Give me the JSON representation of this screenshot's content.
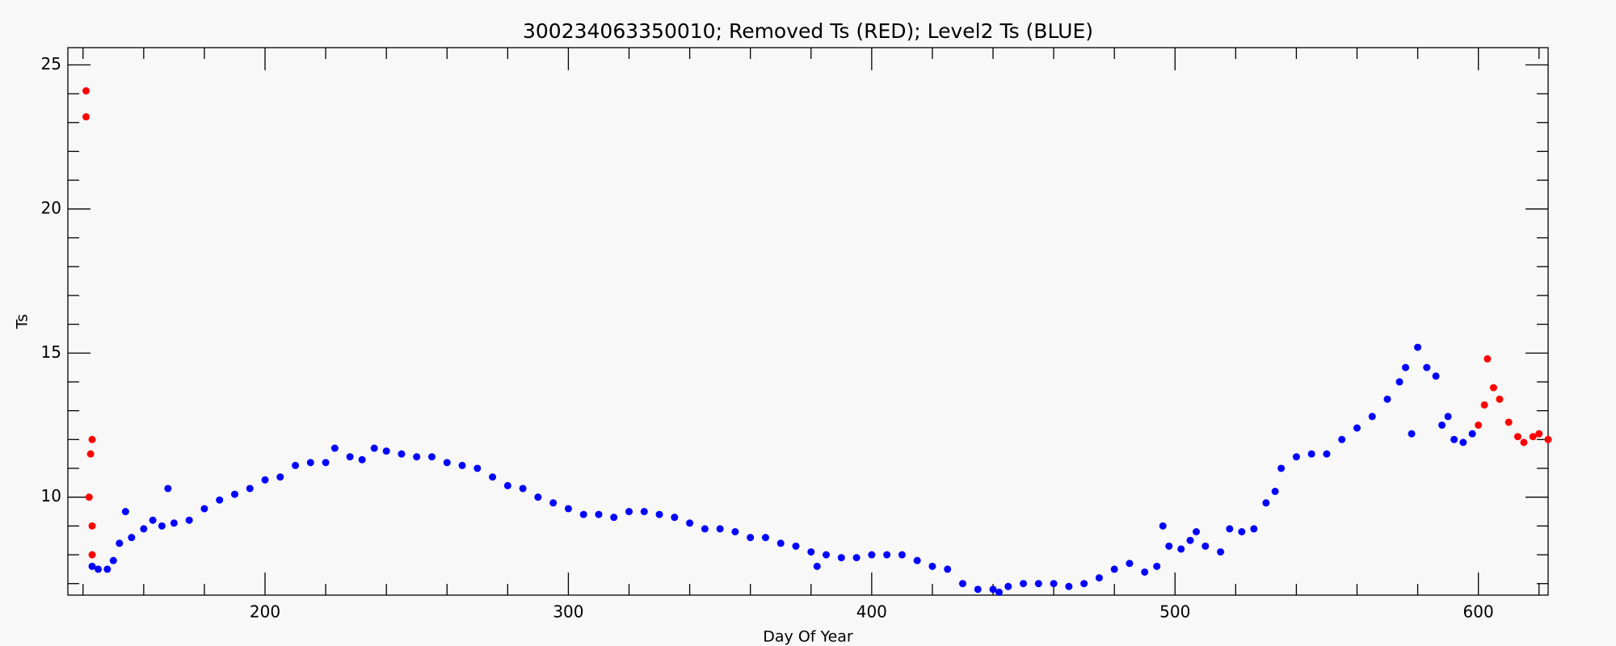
{
  "chart_data": {
    "type": "scatter",
    "title": "300234063350010; Removed Ts (RED); Level2 Ts (BLUE)",
    "xlabel": "Day Of Year",
    "ylabel": "Ts",
    "xlim": [
      135,
      623
    ],
    "ylim": [
      6.6,
      25.6
    ],
    "xticks": [
      200,
      300,
      400,
      500,
      600
    ],
    "yticks": [
      10,
      15,
      20,
      25
    ],
    "xminorticks": [
      140,
      160,
      180,
      220,
      240,
      260,
      280,
      320,
      340,
      360,
      380,
      420,
      440,
      460,
      480,
      520,
      540,
      560,
      580,
      620
    ],
    "yminorticks": [
      7,
      8,
      9,
      11,
      12,
      13,
      14,
      16,
      17,
      18,
      19,
      21,
      22,
      23,
      24
    ],
    "series": [
      {
        "color": "#ff0000",
        "x": [
          141,
          141,
          142,
          142.5,
          143,
          143,
          143,
          600,
          602,
          603,
          605,
          607,
          610,
          613,
          615,
          618,
          620,
          623
        ],
        "values": [
          24.1,
          23.2,
          10.0,
          11.5,
          12.0,
          9.0,
          8.0,
          12.5,
          13.2,
          14.8,
          13.8,
          13.4,
          12.6,
          12.1,
          11.9,
          12.1,
          12.2,
          12.0
        ]
      },
      {
        "color": "#0000ff",
        "x": [
          143,
          145,
          148,
          150,
          152,
          154,
          156,
          160,
          163,
          166,
          168,
          170,
          175,
          180,
          185,
          190,
          195,
          200,
          205,
          210,
          215,
          220,
          223,
          228,
          232,
          236,
          240,
          245,
          250,
          255,
          260,
          265,
          270,
          275,
          280,
          285,
          290,
          295,
          300,
          305,
          310,
          315,
          320,
          325,
          330,
          335,
          340,
          345,
          350,
          355,
          360,
          365,
          370,
          375,
          380,
          382,
          385,
          390,
          395,
          400,
          405,
          410,
          415,
          420,
          425,
          430,
          435,
          440,
          442,
          445,
          450,
          455,
          460,
          465,
          470,
          475,
          480,
          485,
          490,
          494,
          496,
          498,
          502,
          505,
          507,
          510,
          515,
          518,
          522,
          526,
          530,
          533,
          535,
          540,
          545,
          550,
          555,
          560,
          565,
          570,
          574,
          576,
          578,
          580,
          583,
          586,
          588,
          590,
          592,
          595,
          598
        ],
        "values": [
          7.6,
          7.5,
          7.5,
          7.8,
          8.4,
          9.5,
          8.6,
          8.9,
          9.2,
          9.0,
          10.3,
          9.1,
          9.2,
          9.6,
          9.9,
          10.1,
          10.3,
          10.6,
          10.7,
          11.1,
          11.2,
          11.2,
          11.7,
          11.4,
          11.3,
          11.7,
          11.6,
          11.5,
          11.4,
          11.4,
          11.2,
          11.1,
          11.0,
          10.7,
          10.4,
          10.3,
          10.0,
          9.8,
          9.6,
          9.4,
          9.4,
          9.3,
          9.5,
          9.5,
          9.4,
          9.3,
          9.1,
          8.9,
          8.9,
          8.8,
          8.6,
          8.6,
          8.4,
          8.3,
          8.1,
          7.6,
          8.0,
          7.9,
          7.9,
          8.0,
          8.0,
          8.0,
          7.8,
          7.6,
          7.5,
          7.0,
          6.8,
          6.8,
          6.7,
          6.9,
          7.0,
          7.0,
          7.0,
          6.9,
          7.0,
          7.2,
          7.5,
          7.7,
          7.4,
          7.6,
          9.0,
          8.3,
          8.2,
          8.5,
          8.8,
          8.3,
          8.1,
          8.9,
          8.8,
          8.9,
          9.8,
          10.2,
          11.0,
          11.4,
          11.5,
          11.5,
          12.0,
          12.4,
          12.8,
          13.4,
          14.0,
          14.5,
          12.2,
          15.2,
          14.5,
          14.2,
          12.5,
          12.8,
          12.0,
          11.9,
          12.2
        ]
      }
    ]
  }
}
